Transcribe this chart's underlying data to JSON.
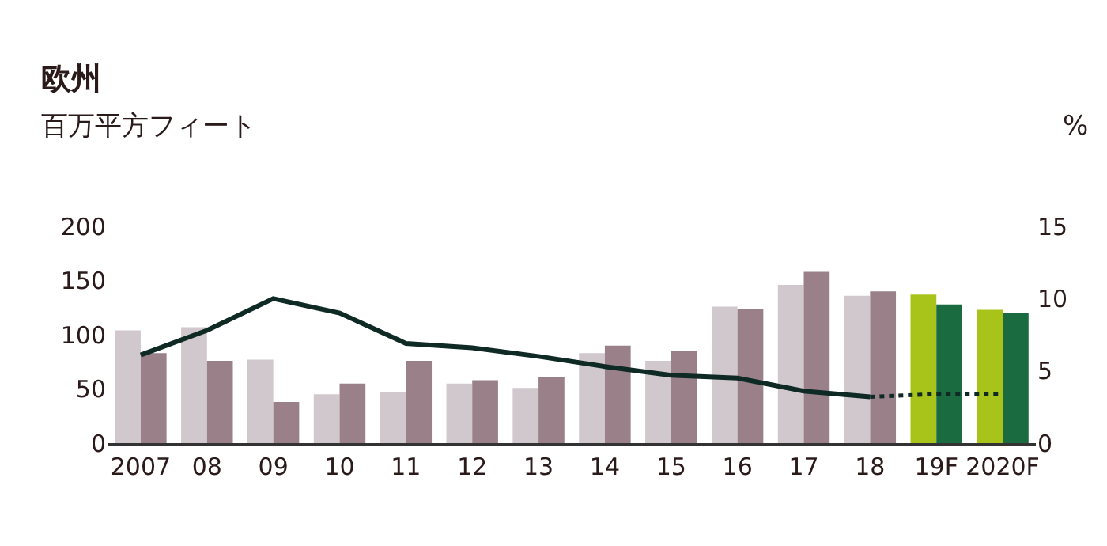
{
  "chart_data": {
    "type": "bar",
    "title": "欧州",
    "ylabel": "百万平方フィート",
    "y2label": "%",
    "categories": [
      "2007",
      "08",
      "09",
      "10",
      "11",
      "12",
      "13",
      "14",
      "15",
      "16",
      "17",
      "18",
      "19F",
      "2020F"
    ],
    "series": [
      {
        "colors": [
          "#d0c8cd",
          "#d0c8cd",
          "#d0c8cd",
          "#d0c8cd",
          "#d0c8cd",
          "#d0c8cd",
          "#d0c8cd",
          "#d0c8cd",
          "#d0c8cd",
          "#d0c8cd",
          "#d0c8cd",
          "#d0c8cd",
          "#a8c41a",
          "#a8c41a"
        ],
        "values": [
          104,
          107,
          77,
          45,
          47,
          55,
          51,
          83,
          76,
          126,
          146,
          136,
          137,
          123
        ]
      },
      {
        "colors": [
          "#9a8189",
          "#9a8189",
          "#9a8189",
          "#9a8189",
          "#9a8189",
          "#9a8189",
          "#9a8189",
          "#9a8189",
          "#9a8189",
          "#9a8189",
          "#9a8189",
          "#9a8189",
          "#1b6b40",
          "#1b6b40"
        ],
        "values": [
          83,
          76,
          38,
          55,
          76,
          58,
          61,
          90,
          85,
          124,
          158,
          140,
          128,
          120
        ]
      },
      {
        "type": "line",
        "axis": "y2",
        "color": "#0f2a24",
        "line_style": "solid",
        "values": [
          6.1,
          7.8,
          10.0,
          9.0,
          6.9,
          6.6,
          6.0,
          5.3,
          4.7,
          4.5,
          3.6,
          3.2,
          null,
          null
        ]
      },
      {
        "type": "line",
        "axis": "y2",
        "color": "#0f2a24",
        "line_style": "dotted",
        "values": [
          null,
          null,
          null,
          null,
          null,
          null,
          null,
          null,
          null,
          null,
          null,
          3.2,
          3.4,
          3.4
        ]
      }
    ],
    "ylim": [
      0,
      200
    ],
    "yticks": [
      0,
      50,
      100,
      150,
      200
    ],
    "y2lim": [
      0,
      15
    ],
    "y2ticks": [
      0,
      5,
      10,
      15
    ]
  }
}
